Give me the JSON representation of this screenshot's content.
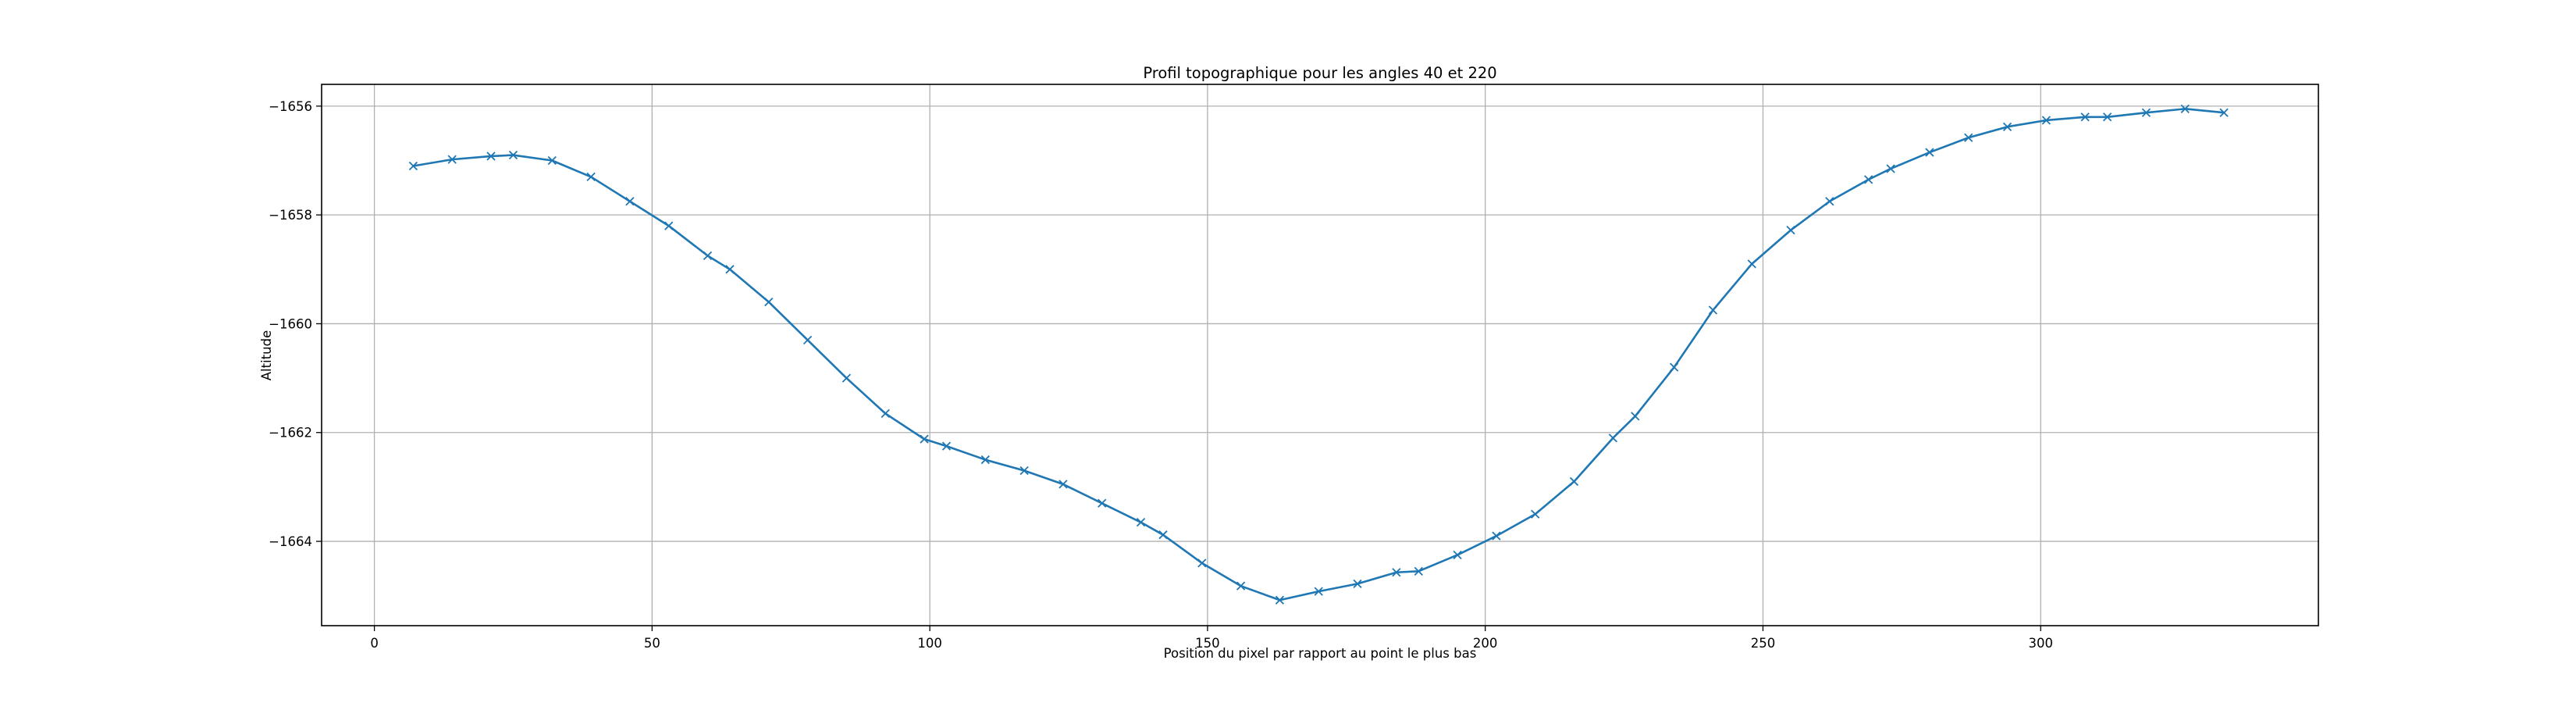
{
  "chart_data": {
    "type": "line",
    "title": "Profil topographique pour les angles 40 et 220",
    "xlabel": "Position du pixel par rapport au point le plus bas",
    "ylabel": "Altitude",
    "xlim": [
      -9.5,
      350
    ],
    "ylim": [
      -1665.55,
      -1655.6
    ],
    "xticks": [
      0,
      50,
      100,
      150,
      200,
      250,
      300
    ],
    "yticks": [
      -1664,
      -1662,
      -1660,
      -1658,
      -1656
    ],
    "ytick_labels": [
      "−1664",
      "−1662",
      "−1660",
      "−1658",
      "−1656"
    ],
    "grid": true,
    "marker": "x",
    "color": "#1f77b4",
    "series": [
      {
        "x": [
          7,
          14,
          21,
          25,
          32,
          39,
          46,
          53,
          60,
          64,
          71,
          78,
          85,
          92,
          99,
          103,
          110,
          117,
          124,
          131,
          138,
          142,
          149,
          156,
          163,
          170,
          177,
          184,
          188,
          195,
          202,
          209,
          216,
          223,
          227,
          234,
          241,
          248,
          255,
          262,
          269,
          273,
          280,
          287,
          294,
          301,
          308,
          312,
          319,
          326,
          333
        ],
        "y": [
          -1657.1,
          -1656.98,
          -1656.92,
          -1656.9,
          -1657.0,
          -1657.3,
          -1657.75,
          -1658.2,
          -1658.75,
          -1659.0,
          -1659.6,
          -1660.3,
          -1661.0,
          -1661.65,
          -1662.12,
          -1662.25,
          -1662.5,
          -1662.7,
          -1662.95,
          -1663.3,
          -1663.65,
          -1663.88,
          -1664.4,
          -1664.82,
          -1665.08,
          -1664.92,
          -1664.78,
          -1664.57,
          -1664.55,
          -1664.25,
          -1663.9,
          -1663.5,
          -1662.9,
          -1662.1,
          -1661.7,
          -1660.8,
          -1659.75,
          -1658.9,
          -1658.28,
          -1657.75,
          -1657.35,
          -1657.15,
          -1656.85,
          -1656.58,
          -1656.38,
          -1656.26,
          -1656.2,
          -1656.2,
          -1656.12,
          -1656.05,
          -1656.12
        ]
      }
    ]
  }
}
